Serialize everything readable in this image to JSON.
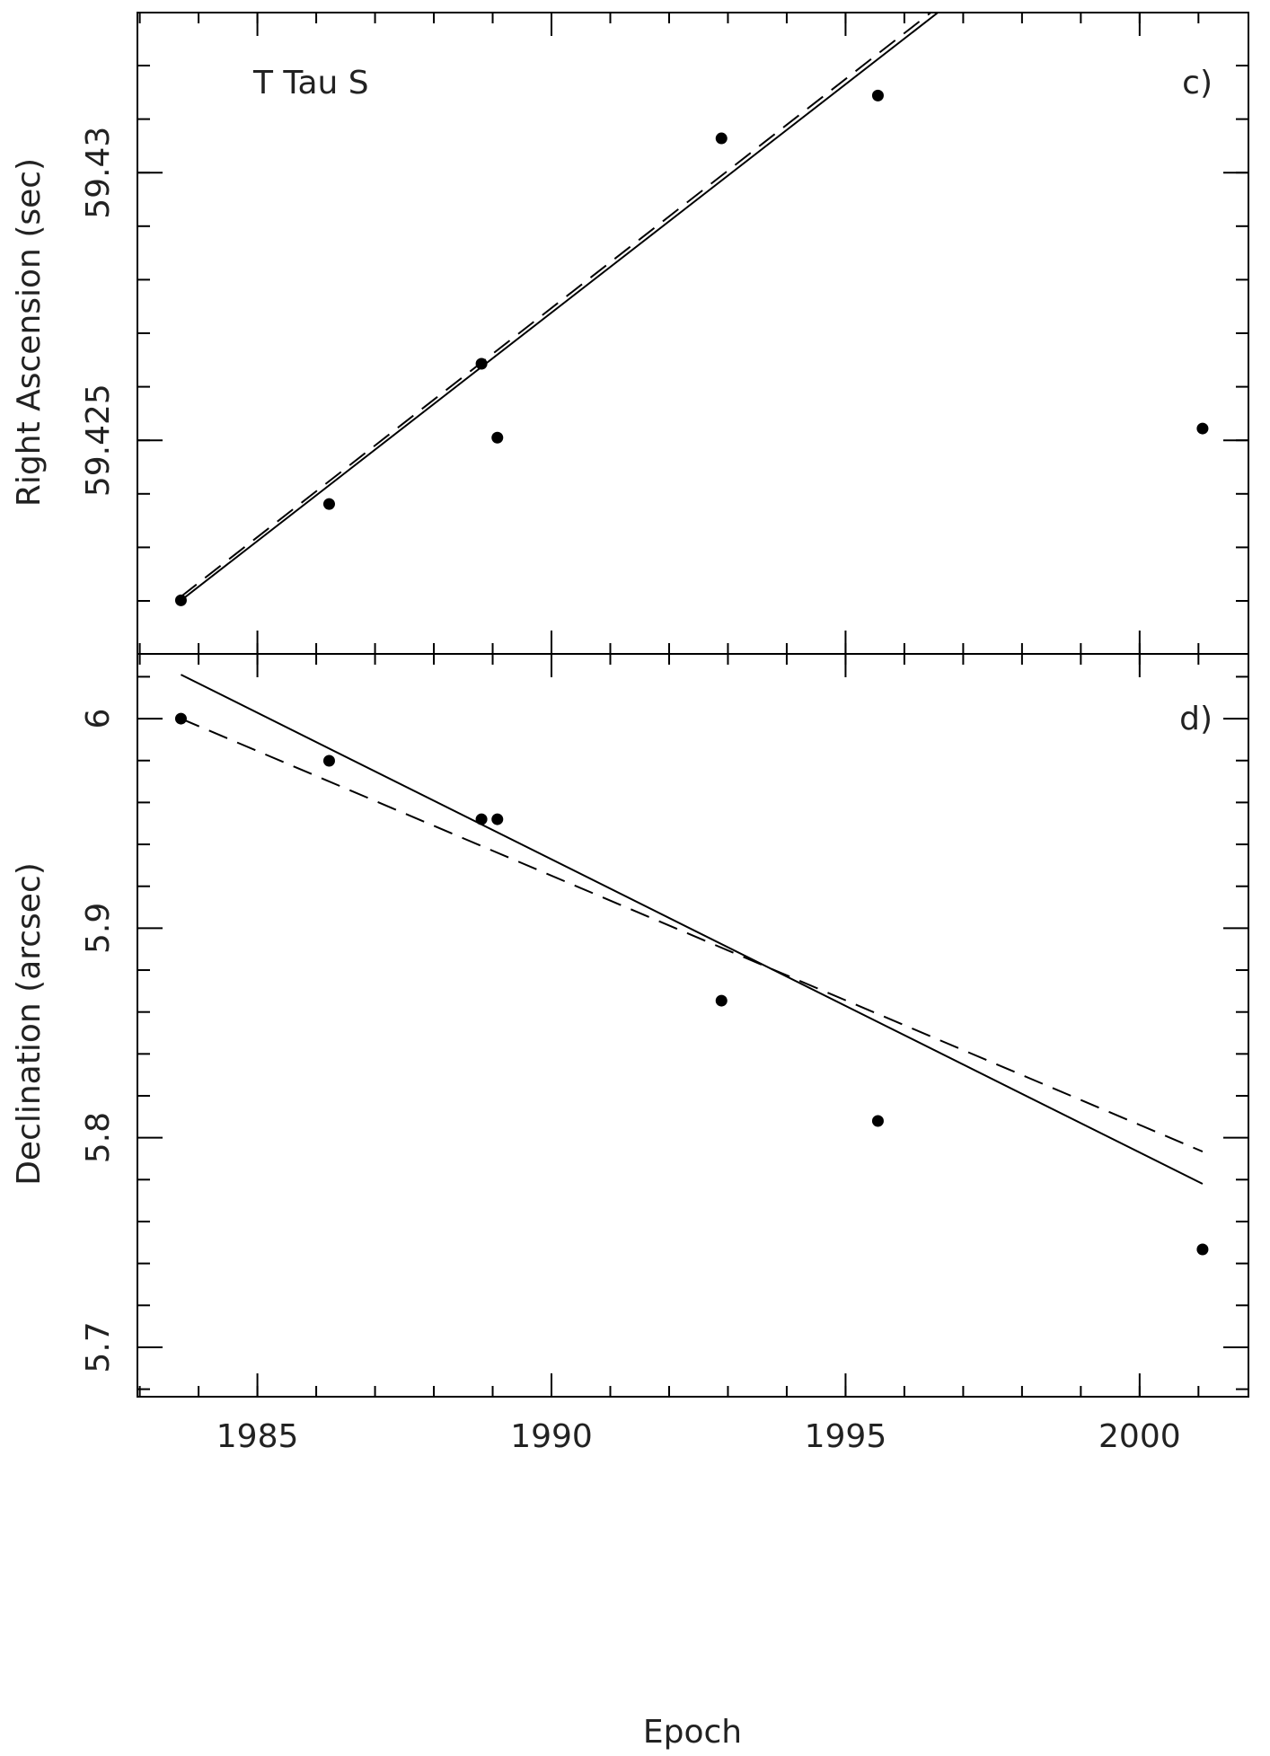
{
  "chart_data": [
    {
      "type": "scatter",
      "title": "T Tau S",
      "panel_label": "c)",
      "ylabel": "Right Ascension (sec)",
      "xlim": [
        1982.96,
        2001.85
      ],
      "xticks": [
        1985,
        1990,
        1995,
        2000
      ],
      "show_xticklabels": false,
      "xminor": [
        1983,
        1984,
        1985,
        1986,
        1987,
        1988,
        1989,
        1990,
        1991,
        1992,
        1993,
        1994,
        1995,
        1996,
        1997,
        1998,
        1999,
        2000,
        2001
      ],
      "ylim": [
        59.42101,
        59.43299
      ],
      "yticks": [
        59.425,
        59.43
      ],
      "yminor": [
        59.422,
        59.423,
        59.424,
        59.425,
        59.426,
        59.427,
        59.428,
        59.429,
        59.43,
        59.431,
        59.432
      ],
      "color": "#000000",
      "points": {
        "x": [
          1983.7,
          1986.22,
          1988.81,
          1989.08,
          1992.89,
          1995.55,
          2001.07
        ],
        "y": [
          59.42201,
          59.42381,
          59.42643,
          59.42505,
          59.43064,
          59.43144,
          59.42522
        ]
      },
      "fits": [
        {
          "style": "solid",
          "x": [
            1983.7,
            1996.57
          ],
          "y": [
            59.42201,
            59.43299
          ]
        },
        {
          "style": "dashed",
          "x": [
            1983.7,
            1996.45
          ],
          "y": [
            59.42208,
            59.43299
          ]
        }
      ]
    },
    {
      "type": "scatter",
      "panel_label": "d)",
      "ylabel": "Declination (arcsec)",
      "xlabel": "Epoch",
      "xlim": [
        1982.96,
        2001.85
      ],
      "xticks": [
        1985,
        1990,
        1995,
        2000
      ],
      "show_xticklabels": true,
      "xminor": [
        1983,
        1984,
        1985,
        1986,
        1987,
        1988,
        1989,
        1990,
        1991,
        1992,
        1993,
        1994,
        1995,
        1996,
        1997,
        1998,
        1999,
        2000,
        2001
      ],
      "ylim": [
        5.6764,
        6.0309
      ],
      "yticks": [
        5.7,
        5.8,
        5.9,
        6
      ],
      "yminor": [
        5.68,
        5.72,
        5.74,
        5.76,
        5.78,
        5.82,
        5.84,
        5.86,
        5.88,
        5.92,
        5.94,
        5.96,
        5.98,
        6.02
      ],
      "color": "#000000",
      "points": {
        "x": [
          1983.7,
          1986.22,
          1988.81,
          1989.08,
          1992.89,
          1995.55,
          2001.07
        ],
        "y": [
          6.0,
          5.9799,
          5.952,
          5.952,
          5.8654,
          5.808,
          5.7467
        ]
      },
      "fits": [
        {
          "style": "solid",
          "x": [
            1983.7,
            2001.07
          ],
          "y": [
            6.021,
            5.778
          ]
        },
        {
          "style": "dashed",
          "x": [
            1983.7,
            2001.07
          ],
          "y": [
            6.0,
            5.7934
          ]
        }
      ]
    }
  ]
}
